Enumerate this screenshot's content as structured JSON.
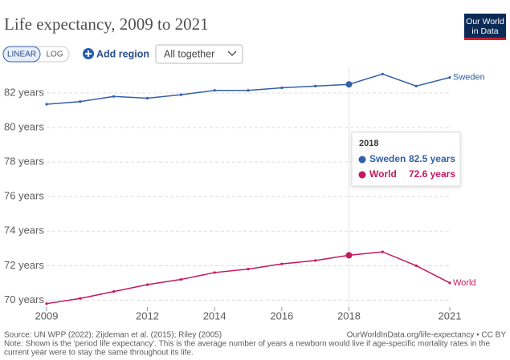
{
  "chart_data": {
    "type": "line",
    "title": "Life expectancy, 2009 to 2021",
    "x": [
      2009,
      2010,
      2011,
      2012,
      2013,
      2014,
      2015,
      2016,
      2017,
      2018,
      2019,
      2020,
      2021
    ],
    "series": [
      {
        "name": "Sweden",
        "color": "#3360a9",
        "values": [
          81.35,
          81.5,
          81.8,
          81.7,
          81.9,
          82.15,
          82.15,
          82.3,
          82.4,
          82.5,
          83.1,
          82.4,
          82.9
        ]
      },
      {
        "name": "World",
        "color": "#c4185f",
        "values": [
          69.8,
          70.1,
          70.5,
          70.9,
          71.2,
          71.6,
          71.8,
          72.1,
          72.3,
          72.6,
          72.8,
          72.0,
          71.0
        ]
      }
    ],
    "xlim": [
      2009,
      2021
    ],
    "xticks": [
      2009,
      2012,
      2014,
      2016,
      2018,
      2021
    ],
    "ylim": [
      69.6,
      83.3
    ],
    "yticks": [
      {
        "value": 70,
        "label": "70 years"
      },
      {
        "value": 72,
        "label": "72 years"
      },
      {
        "value": 74,
        "label": "74 years"
      },
      {
        "value": 76,
        "label": "76 years"
      },
      {
        "value": 78,
        "label": "78 years"
      },
      {
        "value": 80,
        "label": "80 years"
      },
      {
        "value": 82,
        "label": "82 years"
      }
    ],
    "grid": true,
    "tooltip": {
      "x": 2018,
      "rows": [
        {
          "name": "Sweden",
          "value": 82.5,
          "label": "82.5 years"
        },
        {
          "name": "World",
          "value": 72.6,
          "label": "72.6 years"
        }
      ]
    }
  },
  "controls": {
    "scale": [
      "LINEAR",
      "LOG"
    ],
    "add": "Add region",
    "dropdown": "All together"
  },
  "logo": [
    "Our World",
    "in Data"
  ],
  "footer": {
    "source": "Source: UN WPP (2022); Zijdeman et al. (2015); Riley (2005)",
    "url": "OurWorldInData.org/life-expectancy • CC BY",
    "note": [
      "Note: Shown is the 'period life expectancy'. This is the average number of years a newborn would live if age-specific mortality rates in the",
      "current year were to stay the same throughout its life."
    ]
  }
}
